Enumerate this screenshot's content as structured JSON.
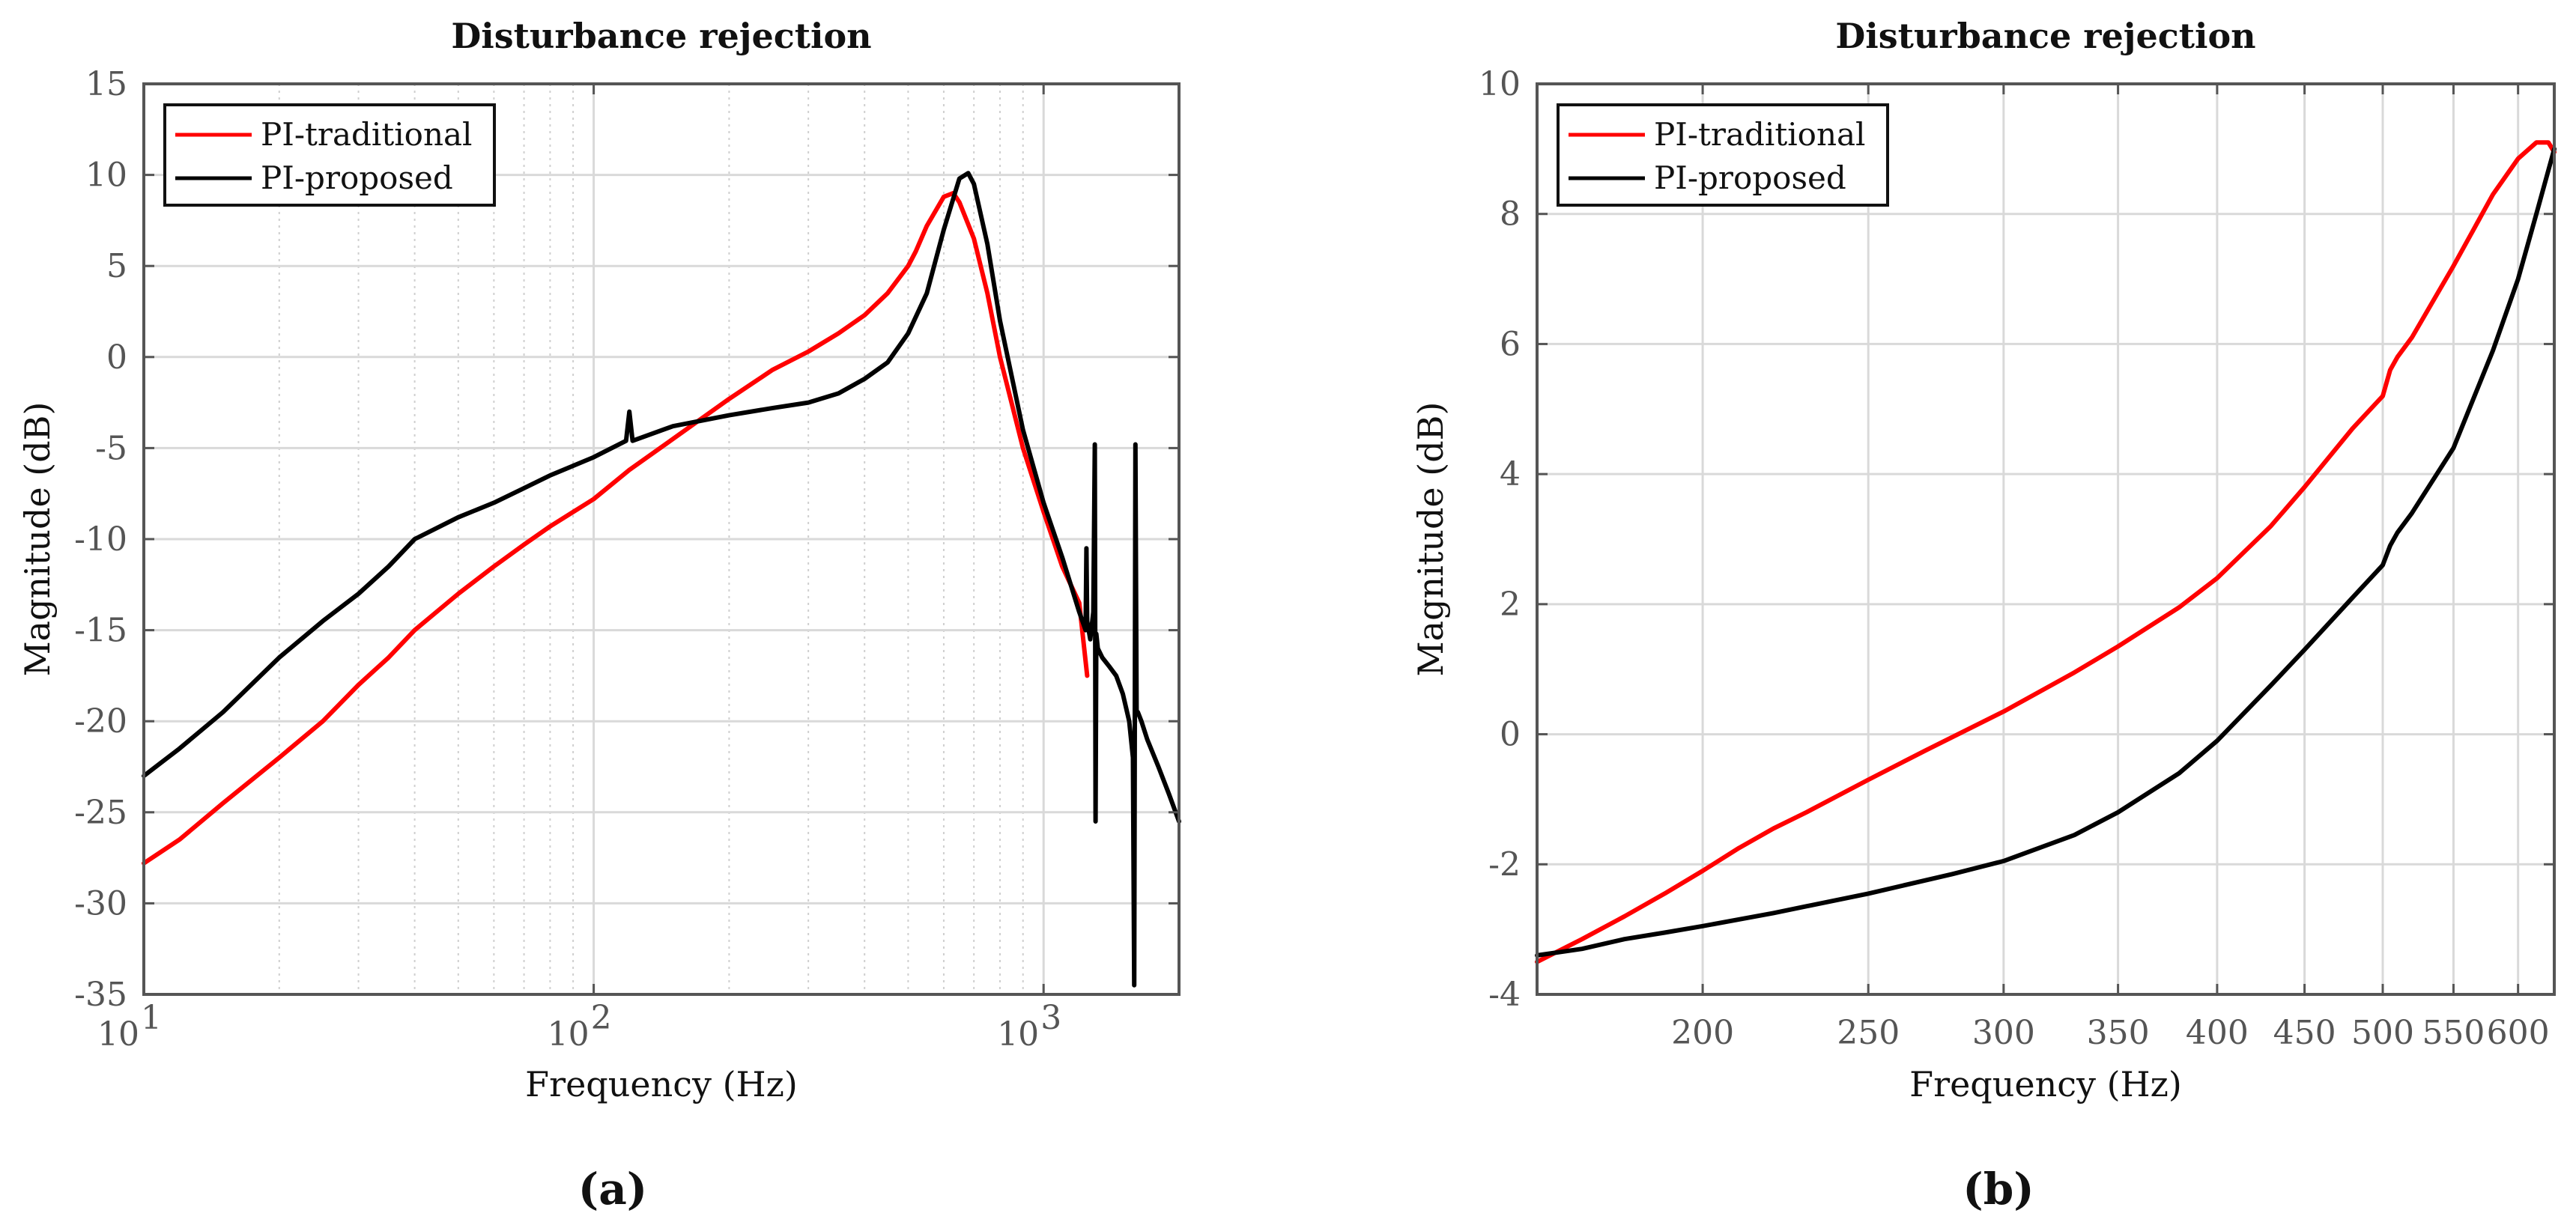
{
  "colors": {
    "pi_traditional": "#ff0000",
    "pi_proposed": "#000000",
    "grid": "#d9d9d9",
    "axis": "#555555"
  },
  "chart_data": [
    {
      "type": "line",
      "caption": "(a)",
      "title": "Disturbance rejection",
      "xlabel": "Frequency (Hz)",
      "ylabel": "Magnitude (dB)",
      "xscale": "log",
      "xlim": [
        10,
        2000
      ],
      "ylim": [
        -35,
        15
      ],
      "xticks": [
        10,
        100,
        1000
      ],
      "xtick_labels": [
        {
          "base": "10",
          "exp": "1"
        },
        {
          "base": "10",
          "exp": "2"
        },
        {
          "base": "10",
          "exp": "3"
        }
      ],
      "yticks": [
        -35,
        -30,
        -25,
        -20,
        -15,
        -10,
        -5,
        0,
        5,
        10,
        15
      ],
      "ytick_labels": [
        "-35",
        "-30",
        "-25",
        "-20",
        "-15",
        "-10",
        "-5",
        "0",
        "5",
        "10",
        "15"
      ],
      "grid": true,
      "legend": {
        "position": "top-left",
        "entries": [
          "PI-traditional",
          "PI-proposed"
        ]
      },
      "series": [
        {
          "name": "PI-traditional",
          "color_key": "pi_traditional",
          "x": [
            10,
            12,
            15,
            20,
            25,
            30,
            35,
            40,
            50,
            60,
            70,
            80,
            100,
            120,
            150,
            200,
            250,
            300,
            350,
            400,
            450,
            500,
            520,
            550,
            600,
            630,
            650,
            700,
            750,
            800,
            900,
            1000,
            1100,
            1200,
            1250
          ],
          "y": [
            -27.8,
            -26.5,
            -24.5,
            -22,
            -20,
            -18,
            -16.5,
            -15,
            -13,
            -11.5,
            -10.3,
            -9.3,
            -7.8,
            -6.2,
            -4.5,
            -2.3,
            -0.7,
            0.3,
            1.3,
            2.3,
            3.5,
            5,
            5.8,
            7.2,
            8.8,
            9.0,
            8.5,
            6.5,
            3.5,
            0,
            -5,
            -8.5,
            -11.5,
            -13.5,
            -17.5
          ]
        },
        {
          "name": "PI-proposed",
          "color_key": "pi_proposed",
          "x": [
            10,
            12,
            15,
            20,
            25,
            30,
            35,
            40,
            50,
            60,
            70,
            80,
            100,
            118,
            120,
            122,
            150,
            200,
            250,
            300,
            350,
            400,
            450,
            500,
            550,
            600,
            650,
            680,
            700,
            750,
            800,
            900,
            1000,
            1100,
            1200,
            1240,
            1245,
            1250,
            1270,
            1290,
            1300,
            1305,
            1310,
            1320,
            1350,
            1400,
            1450,
            1500,
            1550,
            1580,
            1590,
            1600,
            1610,
            1620,
            1650,
            1700,
            1800,
            1900,
            2000
          ],
          "y": [
            -23,
            -21.5,
            -19.5,
            -16.5,
            -14.5,
            -13,
            -11.5,
            -10,
            -8.8,
            -8,
            -7.2,
            -6.5,
            -5.5,
            -4.6,
            -3.0,
            -4.6,
            -3.8,
            -3.2,
            -2.8,
            -2.5,
            -2.0,
            -1.2,
            -0.3,
            1.3,
            3.5,
            7,
            9.8,
            10.1,
            9.5,
            6.2,
            2,
            -4,
            -8,
            -11,
            -14,
            -15,
            -10.5,
            -14.5,
            -15.5,
            -14,
            -4.8,
            -25.5,
            -15.2,
            -16,
            -16.5,
            -17,
            -17.5,
            -18.5,
            -20,
            -22,
            -34.5,
            -4.8,
            -19.5,
            -19.5,
            -20,
            -21,
            -22.5,
            -24,
            -25.5
          ]
        }
      ]
    },
    {
      "type": "line",
      "caption": "(b)",
      "title": "Disturbance rejection",
      "xlabel": "Frequency (Hz)",
      "ylabel": "Magnitude (dB)",
      "xscale": "log",
      "xlim": [
        160,
        630
      ],
      "ylim": [
        -4,
        10
      ],
      "xticks": [
        200,
        250,
        300,
        350,
        400,
        450,
        500,
        550,
        600
      ],
      "xtick_labels": [
        "200",
        "250",
        "300",
        "350",
        "400",
        "450",
        "500",
        "550",
        "600"
      ],
      "yticks": [
        -4,
        -2,
        0,
        2,
        4,
        6,
        8,
        10
      ],
      "ytick_labels": [
        "-4",
        "-2",
        "0",
        "2",
        "4",
        "6",
        "8",
        "10"
      ],
      "grid": true,
      "legend": {
        "position": "top-left",
        "entries": [
          "PI-traditional",
          "PI-proposed"
        ]
      },
      "series": [
        {
          "name": "PI-traditional",
          "color_key": "pi_traditional",
          "x": [
            160,
            170,
            180,
            190,
            200,
            210,
            220,
            230,
            250,
            270,
            300,
            330,
            350,
            380,
            400,
            430,
            450,
            480,
            500,
            505,
            510,
            520,
            550,
            580,
            600,
            615,
            625,
            630
          ],
          "y": [
            -3.5,
            -3.15,
            -2.8,
            -2.45,
            -2.1,
            -1.75,
            -1.45,
            -1.2,
            -0.7,
            -0.25,
            0.35,
            0.95,
            1.35,
            1.95,
            2.4,
            3.2,
            3.8,
            4.7,
            5.2,
            5.6,
            5.8,
            6.1,
            7.2,
            8.3,
            8.85,
            9.1,
            9.1,
            8.95
          ]
        },
        {
          "name": "PI-proposed",
          "color_key": "pi_proposed",
          "x": [
            160,
            170,
            180,
            190,
            200,
            220,
            250,
            280,
            300,
            330,
            350,
            380,
            400,
            430,
            450,
            480,
            500,
            505,
            510,
            520,
            550,
            580,
            600,
            615,
            630
          ],
          "y": [
            -3.4,
            -3.3,
            -3.15,
            -3.05,
            -2.95,
            -2.75,
            -2.45,
            -2.15,
            -1.95,
            -1.55,
            -1.2,
            -0.6,
            -0.1,
            0.75,
            1.3,
            2.1,
            2.6,
            2.9,
            3.1,
            3.4,
            4.4,
            5.9,
            7.0,
            8.0,
            9.0
          ]
        }
      ]
    }
  ]
}
